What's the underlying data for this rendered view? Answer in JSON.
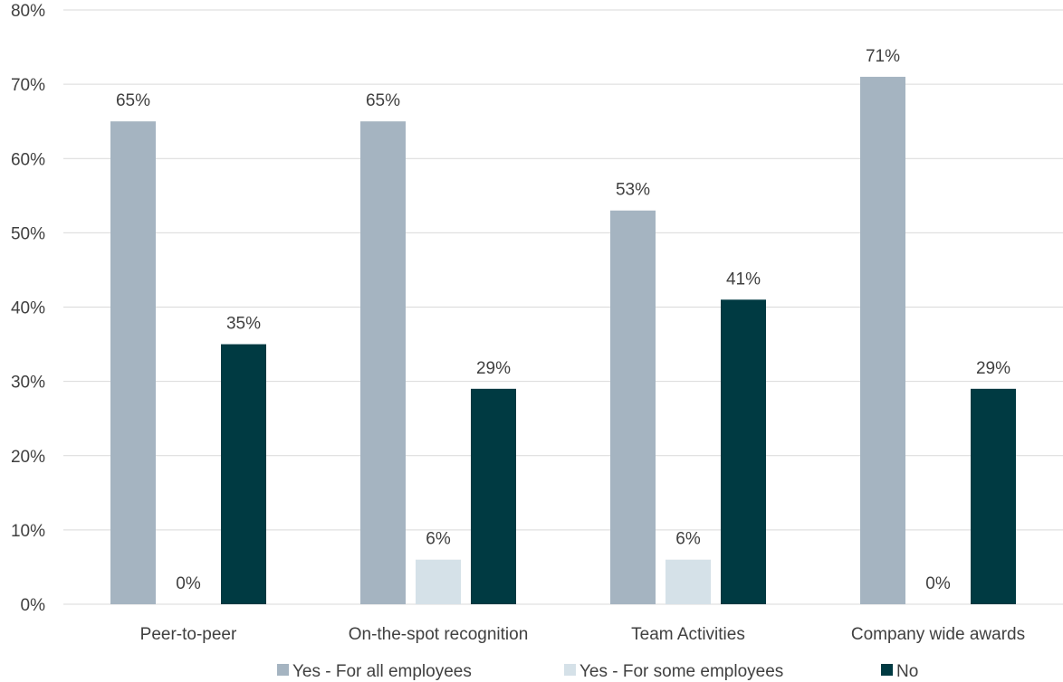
{
  "chart_data": {
    "type": "bar",
    "categories": [
      "Peer-to-peer",
      "On-the-spot recognition",
      "Team Activities",
      "Company wide awards"
    ],
    "series": [
      {
        "name": "Yes - For all employees",
        "values": [
          65,
          65,
          53,
          71
        ],
        "labels": [
          "65%",
          "65%",
          "53%",
          "71%"
        ],
        "color": "#a5b4c1"
      },
      {
        "name": "Yes - For some employees",
        "values": [
          0,
          6,
          6,
          0
        ],
        "labels": [
          "0%",
          "6%",
          "6%",
          "0%"
        ],
        "color": "#d5e1e8"
      },
      {
        "name": "No",
        "values": [
          35,
          29,
          41,
          29
        ],
        "labels": [
          "35%",
          "29%",
          "41%",
          "29%"
        ],
        "color": "#003a42"
      }
    ],
    "y_ticks": [
      "0%",
      "10%",
      "20%",
      "30%",
      "40%",
      "50%",
      "60%",
      "70%",
      "80%"
    ],
    "ylim": [
      0,
      80
    ],
    "grid": true,
    "legend_position": "bottom"
  }
}
